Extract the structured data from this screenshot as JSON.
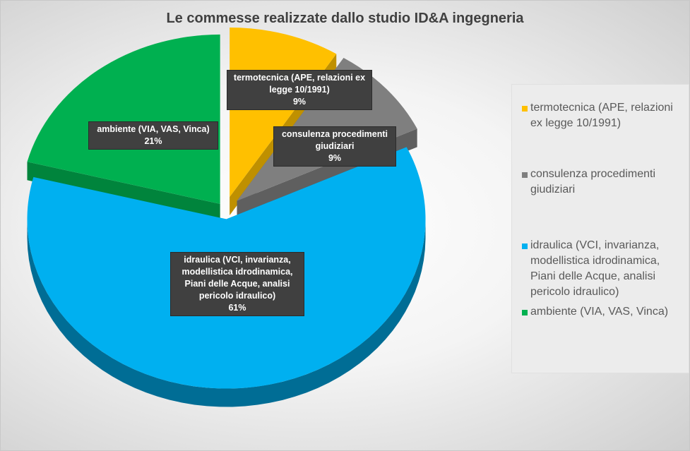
{
  "chart_data": {
    "type": "pie",
    "title": "Le commesse realizzate dallo studio ID&A ingegneria",
    "categories": [
      "termotecnica (APE, relazioni ex legge 10/1991)",
      "consulenza procedimenti giudiziari",
      "idraulica (VCI, invarianza, modellistica idrodinamica, Piani delle Acque, analisi pericolo idraulico)",
      "ambiente (VIA, VAS, Vinca)"
    ],
    "values": [
      9,
      9,
      61,
      21
    ],
    "percent_labels": [
      "9%",
      "9%",
      "61%",
      "21%"
    ],
    "colors": [
      "#ffc000",
      "#7f7f7f",
      "#00b0f0",
      "#00b050"
    ],
    "legend_position": "right"
  },
  "labels": {
    "termotecnica": "termotecnica (APE, relazioni ex legge 10/1991)",
    "consulenza": "consulenza procedimenti giudiziari",
    "idraulica": "idraulica (VCI, invarianza, modellistica idrodinamica, Piani delle Acque, analisi pericolo idraulico)",
    "ambiente": "ambiente (VIA, VAS, Vinca)"
  }
}
